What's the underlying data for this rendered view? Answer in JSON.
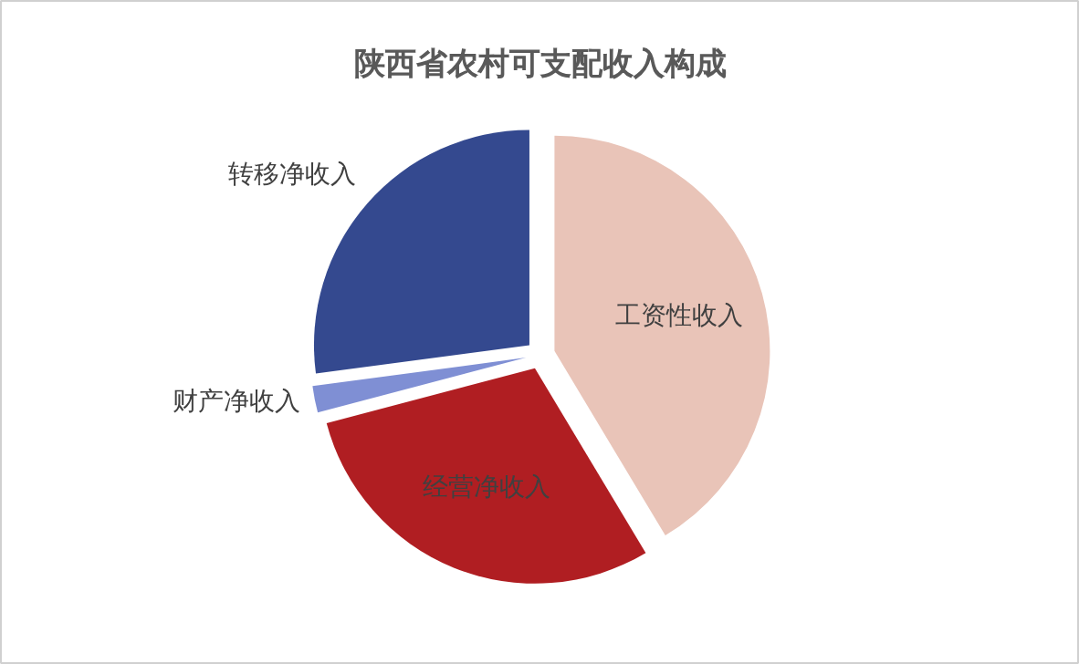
{
  "chart_data": {
    "type": "pie",
    "title": "陕西省农村可支配收入构成",
    "categories": [
      "工资性收入",
      "经营净收入",
      "财产净收入",
      "转移净收入"
    ],
    "values": [
      41.4,
      29.5,
      2.0,
      27.1
    ],
    "colors": [
      "#e9c4b8",
      "#b01e22",
      "#7f8fd4",
      "#34498f"
    ]
  }
}
